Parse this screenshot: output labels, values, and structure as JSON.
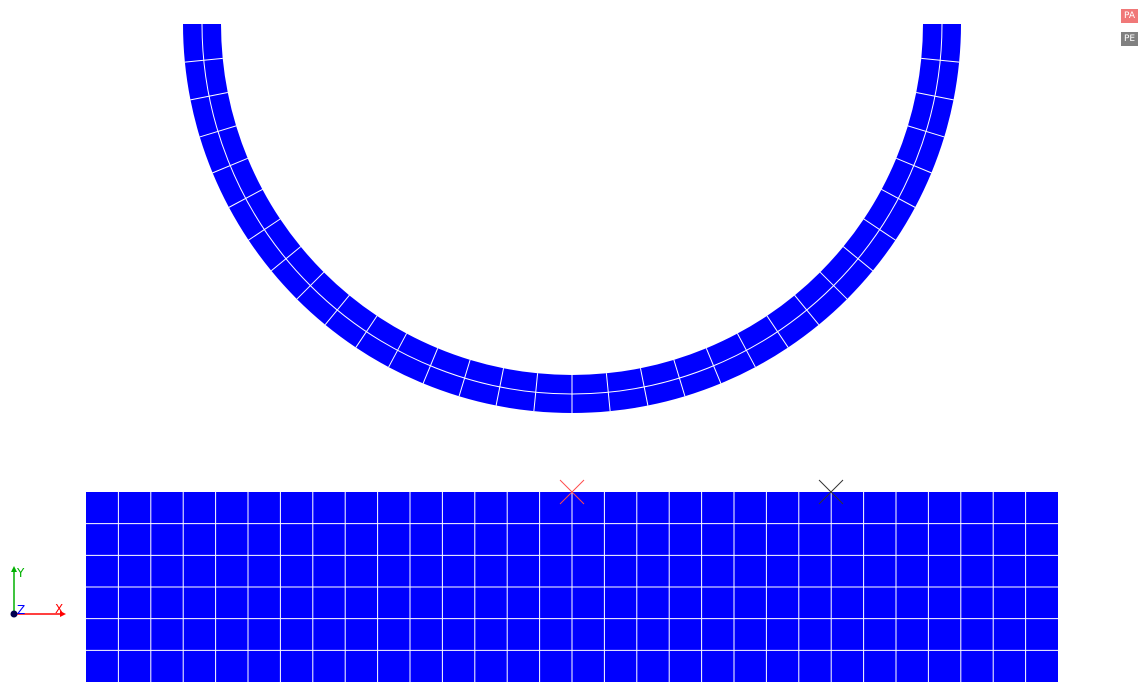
{
  "viewer": {
    "mesh_color": "#0000ff",
    "grid_line_color": "#ffffff",
    "background": "#ffffff"
  },
  "mesh_grid": {
    "rows": 6,
    "columns": 30
  },
  "ring_mesh": {
    "radial_layers": 2,
    "angular_segments": 32
  },
  "markers": [
    {
      "name": "contact-marker-red",
      "color": "#ff4d4d"
    },
    {
      "name": "contact-marker-dark",
      "color": "#333333"
    }
  ],
  "badges": {
    "pa": {
      "label": "PA",
      "color": "#f07878"
    },
    "pe": {
      "label": "PE",
      "color": "#808080"
    }
  },
  "axes": {
    "x_label": "X",
    "y_label": "Y",
    "z_label": "Z",
    "x_color": "#ff0000",
    "y_color": "#00b000",
    "z_color": "#0000ff",
    "origin_color": "#000050"
  }
}
